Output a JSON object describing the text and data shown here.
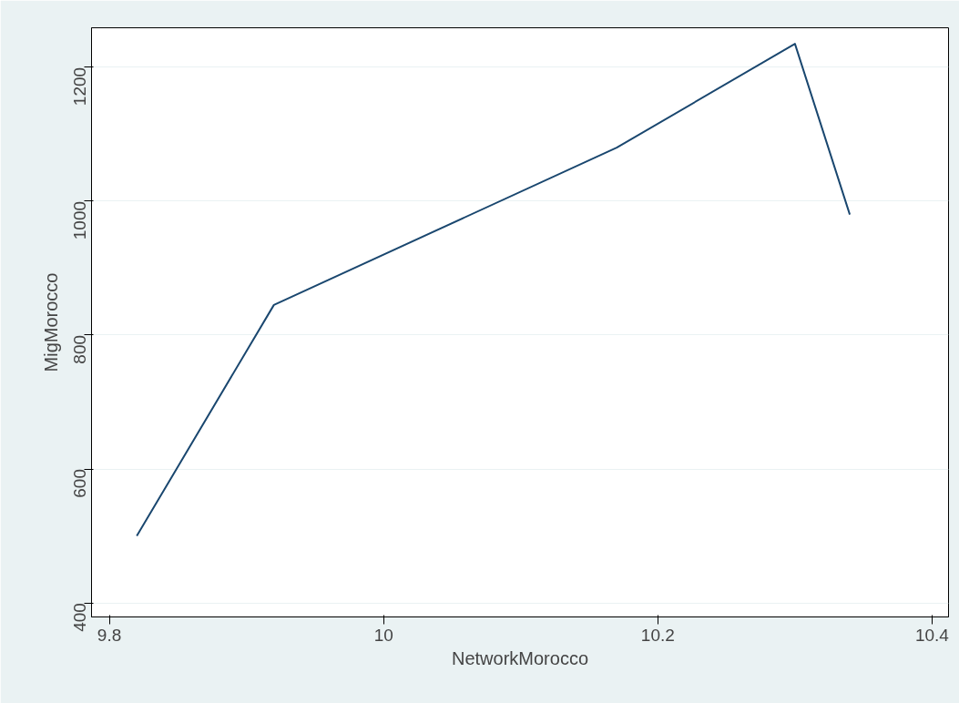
{
  "chart_data": {
    "type": "line",
    "xlabel": "NetworkMorocco",
    "ylabel": "MigMorocco",
    "x": [
      9.82,
      9.92,
      10.17,
      10.3,
      10.34
    ],
    "series": [
      {
        "color": "#1a476f",
        "values": [
          500,
          845,
          1080,
          1235,
          980
        ]
      }
    ],
    "xlim": [
      9.787,
      10.412
    ],
    "ylim": [
      379,
      1259
    ],
    "xticks": [
      9.8,
      10,
      10.2,
      10.4
    ],
    "yticks": [
      400,
      600,
      800,
      1000,
      1200
    ],
    "grid": "y",
    "marker": "none",
    "line_style": "solid"
  }
}
